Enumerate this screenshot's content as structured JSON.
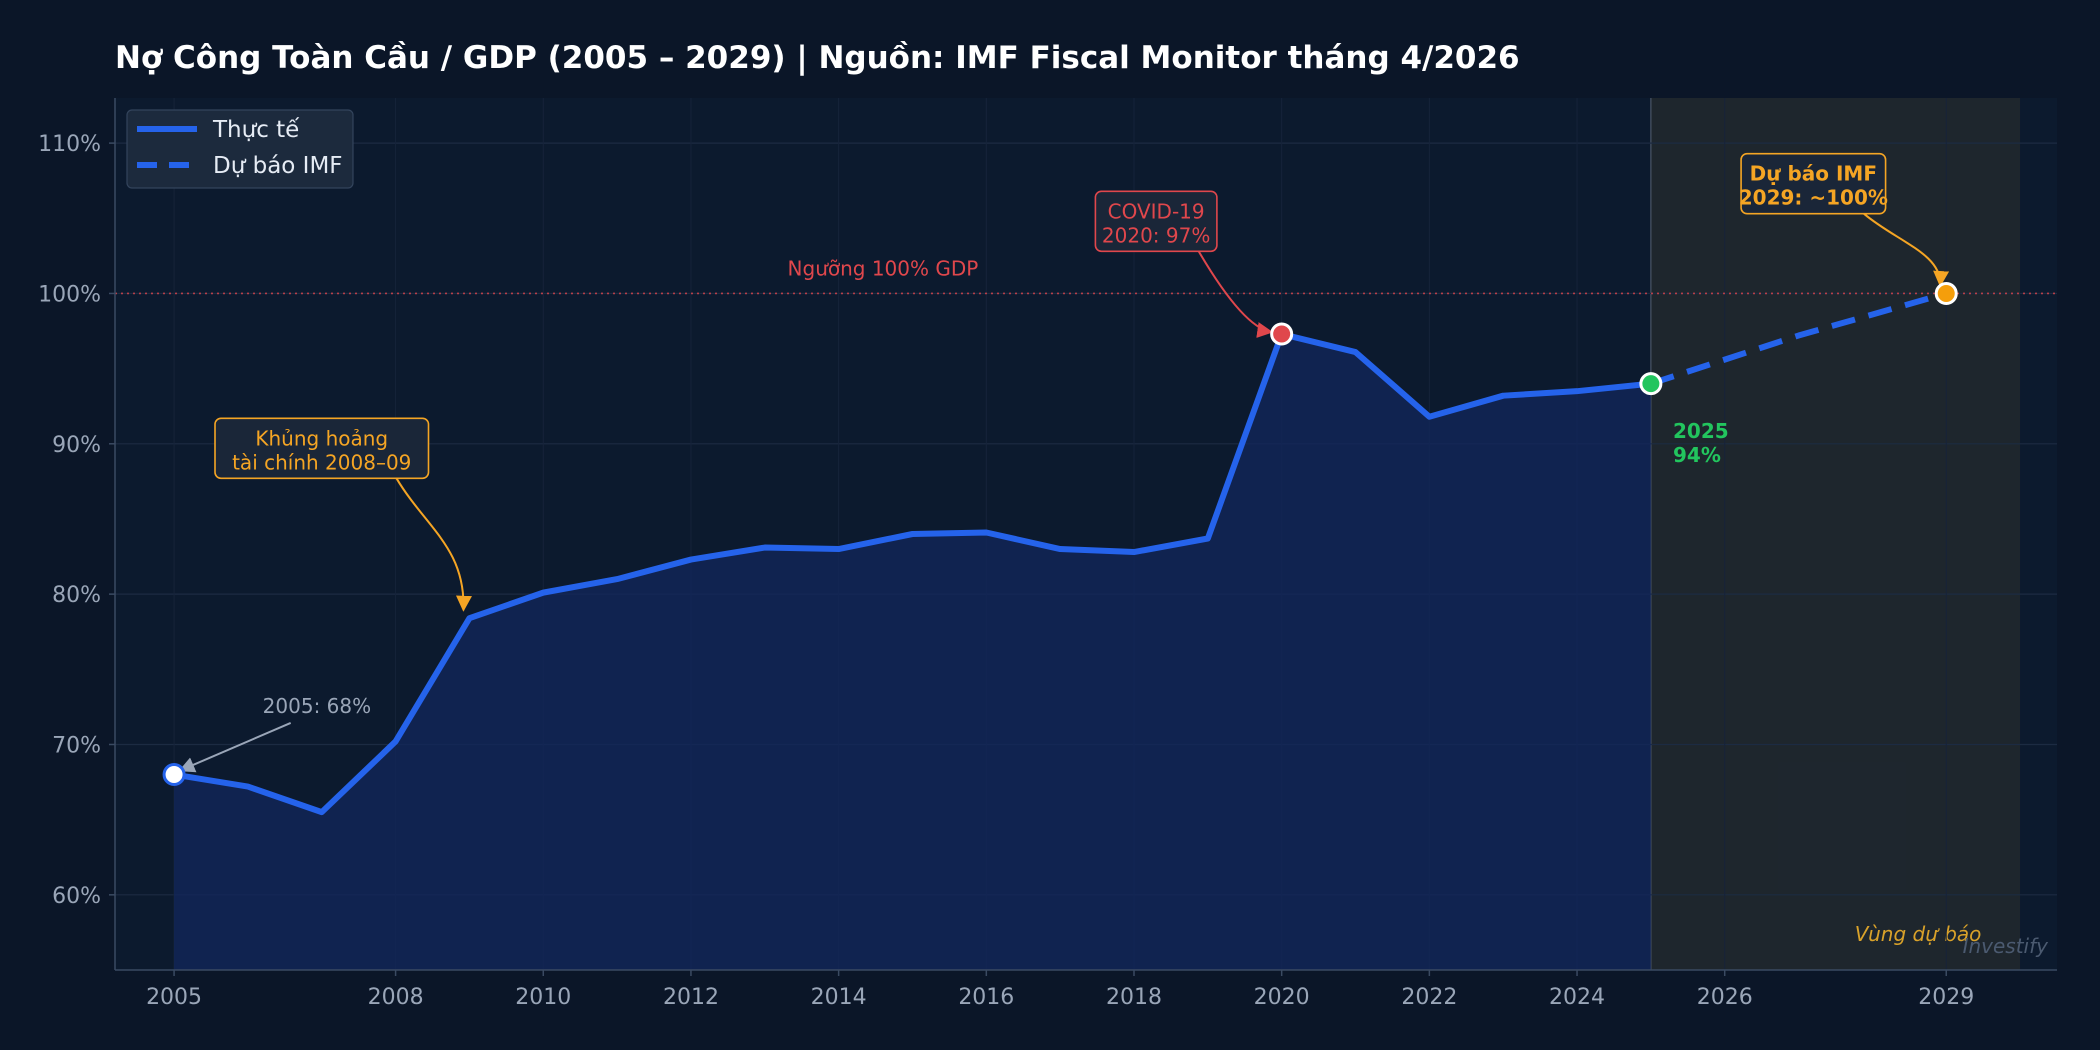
{
  "chart_data": {
    "type": "line",
    "title": "Nợ Công Toàn Cầu / GDP (2005 – 2029)  |  Nguồn: IMF Fiscal Monitor tháng 4/2026",
    "xlabel": "",
    "ylabel": "",
    "xlim": [
      2004.2,
      2030.5
    ],
    "ylim": [
      55,
      113
    ],
    "x_ticks": [
      2005,
      2008,
      2010,
      2012,
      2014,
      2016,
      2018,
      2020,
      2022,
      2024,
      2026,
      2029
    ],
    "y_ticks": [
      60,
      70,
      80,
      90,
      100,
      110
    ],
    "y_tick_suffix": "%",
    "grid": true,
    "legend_position": "top-left",
    "series": [
      {
        "name": "Thực tế",
        "style": "solid",
        "color": "#2563eb",
        "x": [
          2005,
          2006,
          2007,
          2008,
          2009,
          2010,
          2011,
          2012,
          2013,
          2014,
          2015,
          2016,
          2017,
          2018,
          2019,
          2020,
          2021,
          2022,
          2023,
          2024,
          2025
        ],
        "values": [
          68,
          67.2,
          65.5,
          70.2,
          78.4,
          80.1,
          81,
          82.3,
          83.1,
          83,
          84,
          84.1,
          83,
          82.8,
          83.7,
          97.3,
          96.1,
          91.8,
          93.2,
          93.5,
          94
        ]
      },
      {
        "name": "Dự báo IMF",
        "style": "dashed",
        "color": "#2563eb",
        "x": [
          2025,
          2026,
          2027,
          2028,
          2029
        ],
        "values": [
          94,
          95.6,
          97.2,
          98.6,
          100
        ]
      }
    ],
    "threshold": {
      "value": 100,
      "label": "Ngưỡng 100% GDP",
      "color": "#e0474c"
    },
    "forecast_region": {
      "x_start": 2025,
      "x_end": 2030,
      "label": "Vùng dự báo",
      "color": "#d9a22a"
    },
    "markers": [
      {
        "x": 2005,
        "y": 68,
        "color": "#ffffff",
        "ring": "#2563eb"
      },
      {
        "x": 2020,
        "y": 97.3,
        "color": "#e0474c",
        "ring": "#ffffff"
      },
      {
        "x": 2025,
        "y": 94,
        "color": "#22c55e",
        "ring": "#ffffff"
      },
      {
        "x": 2029,
        "y": 100,
        "color": "#f59e0b",
        "ring": "#ffffff"
      }
    ],
    "annotations": [
      {
        "id": "start",
        "lines": [
          "2005: 68%"
        ],
        "color": "#9aa6b8",
        "boxed": false,
        "bold": false,
        "text_x": 2006.2,
        "text_y": 72.1,
        "point_x": 2005,
        "point_y": 68
      },
      {
        "id": "gfc",
        "lines": [
          "Khủng hoảng",
          "tài chính 2008–09"
        ],
        "color": "#f5a524",
        "boxed": true,
        "bold": false,
        "text_x": 2007,
        "text_y": 89.7,
        "point_x": 2009,
        "point_y": 78.4
      },
      {
        "id": "covid",
        "lines": [
          "COVID-19",
          "2020: 97%"
        ],
        "color": "#e0474c",
        "boxed": true,
        "bold": false,
        "text_x": 2018.3,
        "text_y": 104.8,
        "point_x": 2020,
        "point_y": 97.3
      },
      {
        "id": "forecast",
        "lines": [
          "Dự báo IMF",
          "2029: ~100%"
        ],
        "color": "#f5a524",
        "boxed": true,
        "bold": true,
        "text_x": 2027.2,
        "text_y": 107.3,
        "point_x": 2029,
        "point_y": 100
      },
      {
        "id": "y2025",
        "lines": [
          "2025",
          "94%"
        ],
        "color": "#22c55e",
        "boxed": false,
        "bold": true,
        "text_x": 2025.3,
        "text_y": 90.4
      }
    ],
    "watermark": "Investify"
  }
}
